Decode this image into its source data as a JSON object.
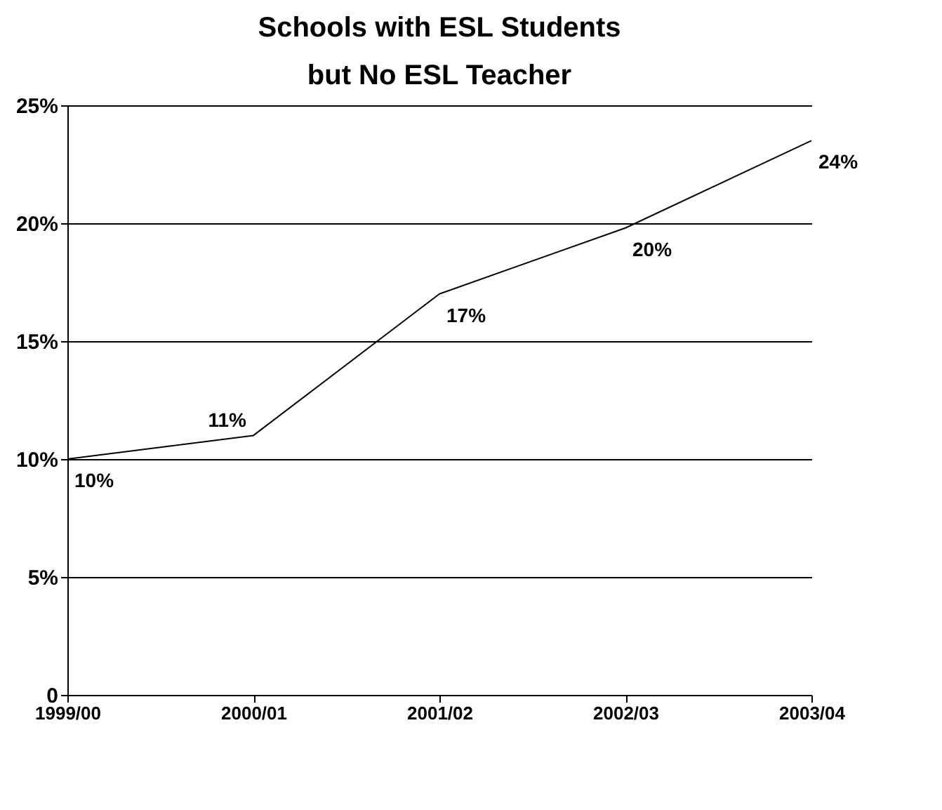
{
  "chart_data": {
    "type": "line",
    "title": [
      "Schools with ESL Students",
      "but No ESL Teacher"
    ],
    "categories": [
      "1999/00",
      "2000/01",
      "2001/02",
      "2002/03",
      "2003/04"
    ],
    "series": [
      {
        "color": "#000000",
        "values": [
          10,
          11,
          17,
          19.8,
          23.5
        ],
        "value_labels": [
          "10%",
          "11%",
          "17%",
          "20%",
          "24%"
        ]
      }
    ],
    "ylim": [
      0,
      25
    ],
    "yticks": [
      {
        "value": 0,
        "label": "0"
      },
      {
        "value": 5,
        "label": "5%"
      },
      {
        "value": 10,
        "label": "10%"
      },
      {
        "value": 15,
        "label": "15%"
      },
      {
        "value": 20,
        "label": "20%"
      },
      {
        "value": 25,
        "label": "25%"
      }
    ],
    "grid": "y",
    "legend": false,
    "marker": "none",
    "line_style": "solid"
  }
}
